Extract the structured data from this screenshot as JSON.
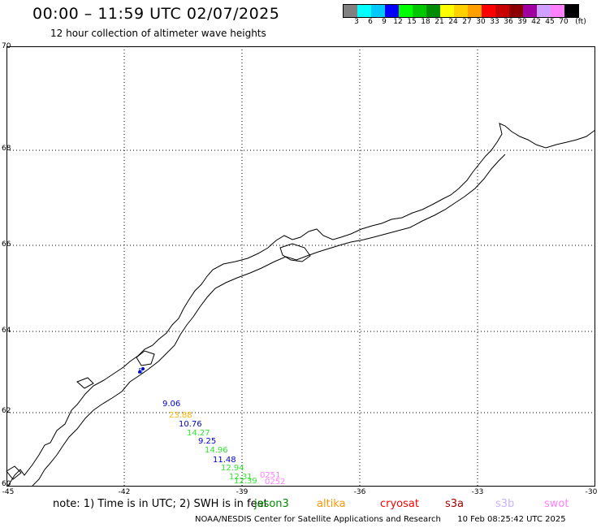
{
  "header": {
    "title": "00:00 – 11:59 UTC 02/07/2025",
    "subtitle": "12 hour collection of altimeter wave heights"
  },
  "color_scale": {
    "swatches": [
      "#808080",
      "#00ffff",
      "#00c8ff",
      "#0000ff",
      "#00ff00",
      "#00c800",
      "#008c00",
      "#ffff00",
      "#ffd000",
      "#ffa000",
      "#ff0000",
      "#c80000",
      "#8b0000",
      "#a000a0",
      "#d0a0ff",
      "#ff80ff",
      "#000000"
    ],
    "labels": [
      "3",
      "6",
      "9",
      "12",
      "15",
      "18",
      "21",
      "24",
      "27",
      "30",
      "33",
      "36",
      "39",
      "42",
      "45",
      "70",
      "(ft)"
    ]
  },
  "map": {
    "lat_labels": [
      "70",
      "68",
      "66",
      "64",
      "62",
      "60"
    ],
    "lon_labels": [
      "-45",
      "-42",
      "-39",
      "-36",
      "-33",
      "-30"
    ],
    "wave_heights": [
      {
        "value": "9.06",
        "color": "#0000c8"
      },
      {
        "value": "23.88",
        "color": "#ffb400"
      },
      {
        "value": "10.76",
        "color": "#0000c8"
      },
      {
        "value": "14.27",
        "color": "#32e632"
      },
      {
        "value": "9.25",
        "color": "#0000c8"
      },
      {
        "value": "14.96",
        "color": "#32e632"
      },
      {
        "value": "11.48",
        "color": "#0000c8"
      },
      {
        "value": "12.94",
        "color": "#32e632"
      },
      {
        "value": "12.31",
        "color": "#32e632"
      },
      {
        "value": "12.39",
        "color": "#32e632"
      },
      {
        "value": "0251",
        "color": "#ff80ff"
      },
      {
        "value": "0252",
        "color": "#ff80ff"
      },
      {
        "value": "5",
        "color": "#3c64c8"
      }
    ]
  },
  "footer": {
    "note": "note: 1) Time is in UTC; 2) SWH is in feet",
    "legend": [
      {
        "name": "jason3",
        "color": "#008c00"
      },
      {
        "name": "altika",
        "color": "#ff9600"
      },
      {
        "name": "cryosat",
        "color": "#ff0000"
      },
      {
        "name": "s3a",
        "color": "#a00000"
      },
      {
        "name": "s3b",
        "color": "#c8b4ff"
      },
      {
        "name": "swot",
        "color": "#ff80ff"
      }
    ],
    "credit": "NOAA/NESDIS Center for Satellite Applications and Research",
    "timestamp": "10 Feb 08:25:42 UTC 2025"
  }
}
